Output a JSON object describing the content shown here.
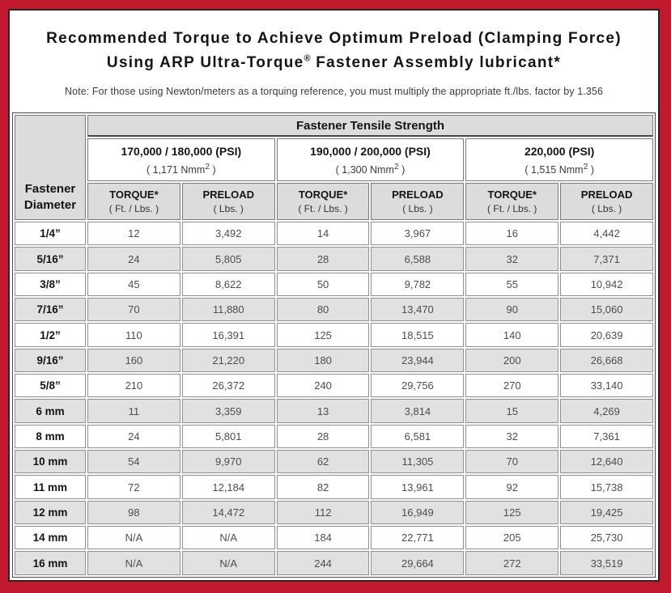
{
  "colors": {
    "frame_red": "#c11a2e",
    "sheet_border": "#2a2425",
    "header_gray": "#dcdcdc",
    "row_alt": "#e1e1e1",
    "cell_border": "#8f8f8f",
    "data_text": "#4d4d4d"
  },
  "title": {
    "line1": "Recommended Torque to Achieve Optimum Preload (Clamping Force)",
    "line2_pre": "Using ARP Ultra-Torque",
    "line2_sup": "®",
    "line2_post": " Fastener Assembly lubricant*",
    "note": "Note: For those using Newton/meters as a torquing reference, you must multiply the appropriate ft./lbs. factor by 1.356"
  },
  "table": {
    "corner_header": "Fastener Diameter",
    "tensile_header": "Fastener Tensile Strength",
    "groups": [
      {
        "psi": "170,000 / 180,000 (PSI)",
        "nmm_pre": "( 1,171 Nmm",
        "nmm_sup": "2",
        "nmm_post": " )"
      },
      {
        "psi": "190,000 / 200,000 (PSI)",
        "nmm_pre": "( 1,300 Nmm",
        "nmm_sup": "2",
        "nmm_post": " )"
      },
      {
        "psi": "220,000 (PSI)",
        "nmm_pre": "( 1,515 Nmm",
        "nmm_sup": "2",
        "nmm_post": " )"
      }
    ],
    "col_headers": [
      {
        "label": "TORQUE*",
        "sub": "( Ft. / Lbs. )"
      },
      {
        "label": "PRELOAD",
        "sub": "( Lbs. )"
      },
      {
        "label": "TORQUE*",
        "sub": "( Ft. / Lbs. )"
      },
      {
        "label": "PRELOAD",
        "sub": "( Lbs. )"
      },
      {
        "label": "TORQUE*",
        "sub": "( Ft. / Lbs. )"
      },
      {
        "label": "PRELOAD",
        "sub": "( Lbs. )"
      }
    ],
    "rows": [
      {
        "diameter": "1/4”",
        "values": [
          "12",
          "3,492",
          "14",
          "3,967",
          "16",
          "4,442"
        ]
      },
      {
        "diameter": "5/16”",
        "values": [
          "24",
          "5,805",
          "28",
          "6,588",
          "32",
          "7,371"
        ]
      },
      {
        "diameter": "3/8”",
        "values": [
          "45",
          "8,622",
          "50",
          "9,782",
          "55",
          "10,942"
        ]
      },
      {
        "diameter": "7/16”",
        "values": [
          "70",
          "11,880",
          "80",
          "13,470",
          "90",
          "15,060"
        ]
      },
      {
        "diameter": "1/2”",
        "values": [
          "110",
          "16,391",
          "125",
          "18,515",
          "140",
          "20,639"
        ]
      },
      {
        "diameter": "9/16”",
        "values": [
          "160",
          "21,220",
          "180",
          "23,944",
          "200",
          "26,668"
        ]
      },
      {
        "diameter": "5/8”",
        "values": [
          "210",
          "26,372",
          "240",
          "29,756",
          "270",
          "33,140"
        ]
      },
      {
        "diameter": "6 mm",
        "values": [
          "11",
          "3,359",
          "13",
          "3,814",
          "15",
          "4,269"
        ]
      },
      {
        "diameter": "8 mm",
        "values": [
          "24",
          "5,801",
          "28",
          "6,581",
          "32",
          "7,361"
        ]
      },
      {
        "diameter": "10 mm",
        "values": [
          "54",
          "9,970",
          "62",
          "11,305",
          "70",
          "12,640"
        ]
      },
      {
        "diameter": "11 mm",
        "values": [
          "72",
          "12,184",
          "82",
          "13,961",
          "92",
          "15,738"
        ]
      },
      {
        "diameter": "12 mm",
        "values": [
          "98",
          "14,472",
          "112",
          "16,949",
          "125",
          "19,425"
        ]
      },
      {
        "diameter": "14 mm",
        "values": [
          "N/A",
          "N/A",
          "184",
          "22,771",
          "205",
          "25,730"
        ]
      },
      {
        "diameter": "16 mm",
        "values": [
          "N/A",
          "N/A",
          "244",
          "29,664",
          "272",
          "33,519"
        ]
      }
    ]
  }
}
